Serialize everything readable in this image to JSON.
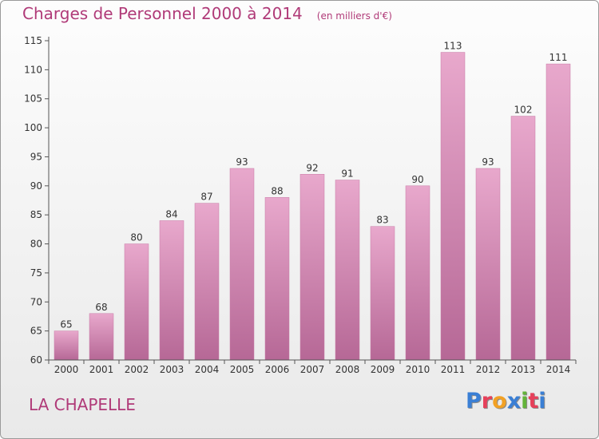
{
  "header": {
    "title": "Charges de Personnel 2000 à 2014",
    "unit": "(en milliers d'€)"
  },
  "footer": {
    "commune": "LA CHAPELLE",
    "logo_letters": [
      "P",
      "r",
      "o",
      "x",
      "i",
      "t",
      "i"
    ]
  },
  "colors": {
    "title": "#b03a78",
    "bar_top": "#e8a8cc",
    "bar_bottom": "#b66896",
    "axis": "#555555",
    "logo": [
      "#3a7fd5",
      "#e6405a",
      "#f2a124",
      "#3a7fd5",
      "#63b33a",
      "#e6405a",
      "#3a7fd5"
    ]
  },
  "chart_data": {
    "type": "bar",
    "title": "Charges de Personnel 2000 à 2014",
    "subtitle": "(en milliers d'€)",
    "categories": [
      "2000",
      "2001",
      "2002",
      "2003",
      "2004",
      "2005",
      "2006",
      "2007",
      "2008",
      "2009",
      "2010",
      "2011",
      "2012",
      "2013",
      "2014"
    ],
    "values": [
      65,
      68,
      80,
      84,
      87,
      93,
      88,
      92,
      91,
      83,
      90,
      113,
      93,
      102,
      111
    ],
    "ylim": [
      60,
      115
    ],
    "yticks": [
      60,
      65,
      70,
      75,
      80,
      85,
      90,
      95,
      100,
      105,
      110,
      115
    ],
    "grid": false,
    "xlabel": "",
    "ylabel": ""
  }
}
